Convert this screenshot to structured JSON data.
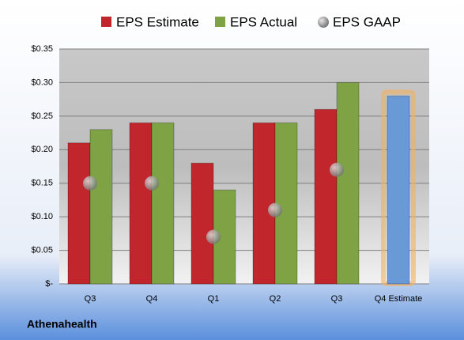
{
  "chart_data": {
    "type": "bar",
    "categories": [
      "Q3",
      "Q4",
      "Q1",
      "Q2",
      "Q3",
      "Q4 Estimate"
    ],
    "series": [
      {
        "name": "EPS Estimate",
        "color": "#c0262b",
        "values": [
          0.21,
          0.24,
          0.18,
          0.24,
          0.26,
          0.28
        ],
        "highlight": {
          "index": 5,
          "color": "#6a9ad6",
          "glow": "#f4b060"
        }
      },
      {
        "name": "EPS Actual",
        "color": "#7ea244",
        "values": [
          0.23,
          0.24,
          0.14,
          0.24,
          0.3,
          null
        ]
      },
      {
        "name": "EPS GAAP",
        "color": "#9aa0a8",
        "marker": "circle",
        "values": [
          0.15,
          0.15,
          0.07,
          0.11,
          0.17,
          null
        ]
      }
    ],
    "ylim": [
      0,
      0.35
    ],
    "yticks": [
      {
        "value": 0,
        "label": "$-"
      },
      {
        "value": 0.05,
        "label": "$0.05"
      },
      {
        "value": 0.1,
        "label": "$0.10"
      },
      {
        "value": 0.15,
        "label": "$0.15"
      },
      {
        "value": 0.2,
        "label": "$0.20"
      },
      {
        "value": 0.25,
        "label": "$0.25"
      },
      {
        "value": 0.3,
        "label": "$0.30"
      },
      {
        "value": 0.35,
        "label": "$0.35"
      }
    ],
    "grid": true,
    "legend": "top",
    "footer": "Athenahealth"
  }
}
